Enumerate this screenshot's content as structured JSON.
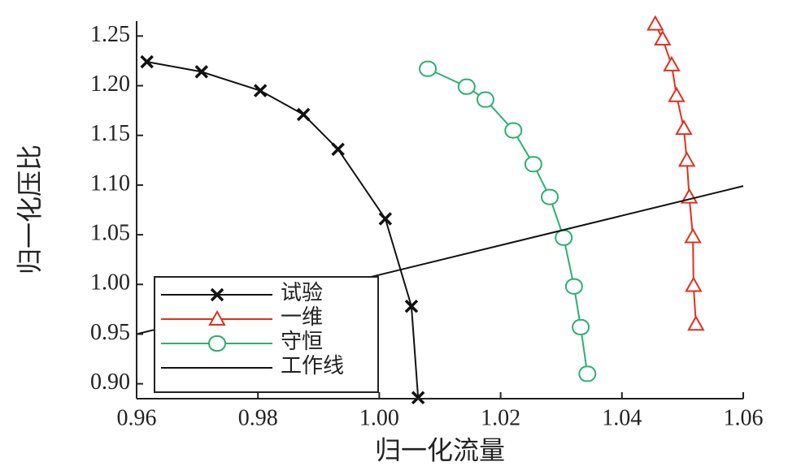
{
  "chart_data": {
    "type": "line",
    "xlabel": "归一化流量",
    "ylabel": "归一化压比",
    "xlim": [
      0.96,
      1.06
    ],
    "xticks": [
      0.96,
      0.98,
      {
        "value": 1.0,
        "label": "1.00"
      },
      1.02,
      1.04,
      1.06
    ],
    "ylim": [
      0.885,
      1.265
    ],
    "yticks": [
      {
        "value": 0.9,
        "label": "0.90"
      },
      0.95,
      {
        "value": 1.0,
        "label": "1.00"
      },
      1.05,
      {
        "value": 1.1,
        "label": "1.10"
      },
      1.15,
      {
        "value": 1.2,
        "label": "1.20"
      },
      1.25
    ],
    "legend": "lower left",
    "series": [
      {
        "name": "试验",
        "color": "#111111",
        "marker": "x",
        "x": [
          0.9617,
          0.9707,
          0.9804,
          0.9875,
          0.9932,
          1.001,
          1.0053,
          1.0064
        ],
        "values": [
          1.224,
          1.214,
          1.195,
          1.171,
          1.136,
          1.066,
          0.978,
          0.886
        ]
      },
      {
        "name": "一维",
        "color": "#e0301e",
        "marker": "triangle",
        "x": [
          1.0455,
          1.0467,
          1.0482,
          1.049,
          1.0502,
          1.0507,
          1.0511,
          1.0517,
          1.0518,
          1.0522
        ],
        "values": [
          1.262,
          1.247,
          1.221,
          1.19,
          1.157,
          1.125,
          1.088,
          1.048,
          0.999,
          0.96
        ]
      },
      {
        "name": "守恒",
        "color": "#2bb070",
        "marker": "circle",
        "x": [
          1.008,
          1.0144,
          1.0175,
          1.0221,
          1.0254,
          1.0281,
          1.0304,
          1.0321,
          1.0332,
          1.0343
        ],
        "values": [
          1.217,
          1.199,
          1.186,
          1.155,
          1.121,
          1.088,
          1.047,
          0.998,
          0.957,
          0.91
        ]
      },
      {
        "name": "工作线",
        "color": "#111111",
        "marker": null,
        "x": [
          0.96,
          1.06
        ],
        "values": [
          0.95,
          1.099
        ]
      }
    ]
  }
}
